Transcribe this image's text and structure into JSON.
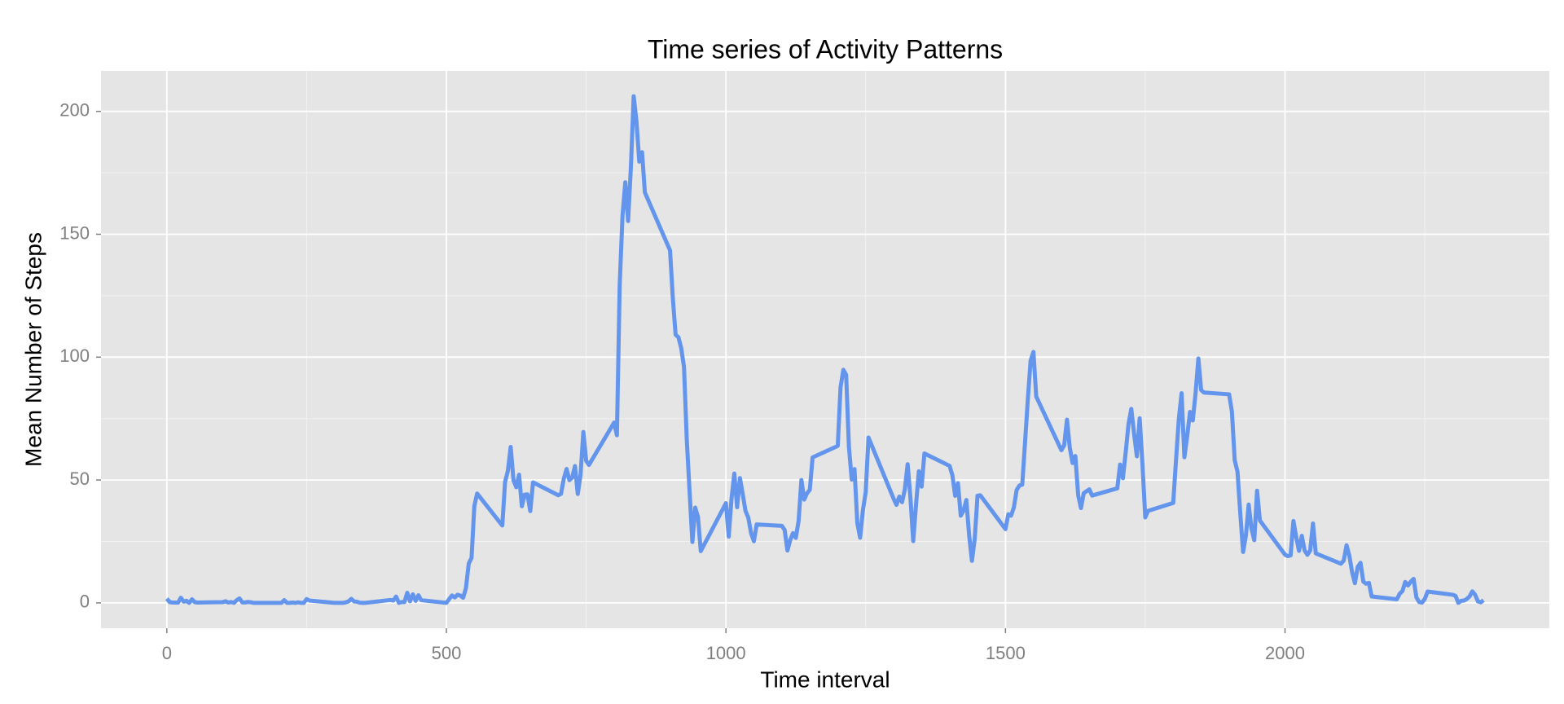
{
  "chart_data": {
    "type": "line",
    "title": "Time series of Activity Patterns",
    "x_label": "Time interval",
    "y_label": "Mean Number of Steps",
    "xlim": [
      -117.75,
      2472.75
    ],
    "ylim": [
      -10.31,
      216.48
    ],
    "xticks": [
      0,
      500,
      1000,
      1500,
      2000
    ],
    "yticks": [
      0,
      50,
      100,
      150,
      200
    ],
    "x_minor_ticks": [
      250,
      750,
      1250,
      1750,
      2250
    ],
    "y_minor_ticks": [
      25,
      75,
      125,
      175
    ],
    "grid": true,
    "x": [
      0,
      5,
      10,
      15,
      20,
      25,
      30,
      35,
      40,
      45,
      50,
      55,
      100,
      105,
      110,
      115,
      120,
      125,
      130,
      135,
      140,
      145,
      150,
      155,
      200,
      205,
      210,
      215,
      220,
      225,
      230,
      235,
      240,
      245,
      250,
      255,
      300,
      305,
      310,
      315,
      320,
      325,
      330,
      335,
      340,
      345,
      350,
      355,
      400,
      405,
      410,
      415,
      420,
      425,
      430,
      435,
      440,
      445,
      450,
      455,
      500,
      505,
      510,
      515,
      520,
      525,
      530,
      535,
      540,
      545,
      550,
      555,
      600,
      605,
      610,
      615,
      620,
      625,
      630,
      635,
      640,
      645,
      650,
      655,
      700,
      705,
      710,
      715,
      720,
      725,
      730,
      735,
      740,
      745,
      750,
      755,
      800,
      805,
      810,
      815,
      820,
      825,
      830,
      835,
      840,
      845,
      850,
      855,
      900,
      905,
      910,
      915,
      920,
      925,
      930,
      935,
      940,
      945,
      950,
      955,
      1000,
      1005,
      1010,
      1015,
      1020,
      1025,
      1030,
      1035,
      1040,
      1045,
      1050,
      1055,
      1100,
      1105,
      1110,
      1115,
      1120,
      1125,
      1130,
      1135,
      1140,
      1145,
      1150,
      1155,
      1200,
      1205,
      1210,
      1215,
      1220,
      1225,
      1230,
      1235,
      1240,
      1245,
      1250,
      1255,
      1300,
      1305,
      1310,
      1315,
      1320,
      1325,
      1330,
      1335,
      1340,
      1345,
      1350,
      1355,
      1400,
      1405,
      1410,
      1415,
      1420,
      1425,
      1430,
      1435,
      1440,
      1445,
      1450,
      1455,
      1500,
      1505,
      1510,
      1515,
      1520,
      1525,
      1530,
      1535,
      1540,
      1545,
      1550,
      1555,
      1600,
      1605,
      1610,
      1615,
      1620,
      1625,
      1630,
      1635,
      1640,
      1645,
      1650,
      1655,
      1700,
      1705,
      1710,
      1715,
      1720,
      1725,
      1730,
      1735,
      1740,
      1745,
      1750,
      1755,
      1800,
      1805,
      1810,
      1815,
      1820,
      1825,
      1830,
      1835,
      1840,
      1845,
      1850,
      1855,
      1900,
      1905,
      1910,
      1915,
      1920,
      1925,
      1930,
      1935,
      1940,
      1945,
      1950,
      1955,
      2000,
      2005,
      2010,
      2015,
      2020,
      2025,
      2030,
      2035,
      2040,
      2045,
      2050,
      2055,
      2100,
      2105,
      2110,
      2115,
      2120,
      2125,
      2130,
      2135,
      2140,
      2145,
      2150,
      2155,
      2200,
      2205,
      2210,
      2215,
      2220,
      2225,
      2230,
      2235,
      2240,
      2245,
      2250,
      2255,
      2300,
      2305,
      2310,
      2315,
      2320,
      2325,
      2330,
      2335,
      2340,
      2345,
      2350,
      2355
    ],
    "series": [
      {
        "color": "#6495ed",
        "values": [
          1.72,
          0.34,
          0.13,
          0.15,
          0.08,
          2.09,
          0.53,
          0.87,
          0,
          1.47,
          0.3,
          0.13,
          0.32,
          0.68,
          0.15,
          0.34,
          0,
          1.11,
          1.83,
          0.17,
          0.17,
          0.38,
          0.26,
          0,
          0,
          0,
          1.13,
          0,
          0,
          0.13,
          0,
          0.23,
          0,
          0,
          1.55,
          0.94,
          0,
          0,
          0,
          0,
          0.21,
          0.62,
          1.62,
          0.58,
          0.49,
          0.08,
          0,
          0,
          1.19,
          0.94,
          2.57,
          0,
          0.34,
          0.36,
          4.11,
          0.66,
          3.49,
          0.83,
          3.11,
          1.11,
          0,
          1.57,
          3,
          2.25,
          3.32,
          2.96,
          2.09,
          6.06,
          16.02,
          18.34,
          39.45,
          44.49,
          31.49,
          49.26,
          53.77,
          63.45,
          49.96,
          47.08,
          52.15,
          39.34,
          44.02,
          44.17,
          37.36,
          49.04,
          43.81,
          44.38,
          50.51,
          54.51,
          49.92,
          50.98,
          55.68,
          44.32,
          52.26,
          69.55,
          57.85,
          56.15,
          73.38,
          68.21,
          129.43,
          157.53,
          171.15,
          155.4,
          177.3,
          206.17,
          195.92,
          179.57,
          183.4,
          167.02,
          143.45,
          124.04,
          109.11,
          108.11,
          103.72,
          95.96,
          66.21,
          45.23,
          24.79,
          38.75,
          34.98,
          21.06,
          40.57,
          26.98,
          42.42,
          52.66,
          38.92,
          50.79,
          44.28,
          37.42,
          34.7,
          28.34,
          25.09,
          31.94,
          31.36,
          29.68,
          21.32,
          25.55,
          28.38,
          26.47,
          33.43,
          49.98,
          42.04,
          44.6,
          46.04,
          59.19,
          63.87,
          87.7,
          94.85,
          92.77,
          63.4,
          50.17,
          54.47,
          32.42,
          26.53,
          37.74,
          45.06,
          67.28,
          42.34,
          39.89,
          43.26,
          40.98,
          46.25,
          56.43,
          42.75,
          25.13,
          39.96,
          53.55,
          47.32,
          60.81,
          55.75,
          51.96,
          43.58,
          48.7,
          35.47,
          37.55,
          41.85,
          27.51,
          17.11,
          26.08,
          43.62,
          43.77,
          30.02,
          36.08,
          35.49,
          38.85,
          45.96,
          47.75,
          48.13,
          65.32,
          82.91,
          98.66,
          102.11,
          83.96,
          62.13,
          64.13,
          74.55,
          63.17,
          56.91,
          59.77,
          43.87,
          38.57,
          44.66,
          45.45,
          46.21,
          43.68,
          46.62,
          56.3,
          50.72,
          61.23,
          72.72,
          78.94,
          68.94,
          59.66,
          75.09,
          56.51,
          34.77,
          37.45,
          40.68,
          58.02,
          74.7,
          85.32,
          59.26,
          67.77,
          77.7,
          74.25,
          85.34,
          99.45,
          86.58,
          85.6,
          84.87,
          77.83,
          58.04,
          53.36,
          36.32,
          20.72,
          27.4,
          40.02,
          30.21,
          25.55,
          45.66,
          33.53,
          19.62,
          19.02,
          19.34,
          33.34,
          26.81,
          21.17,
          27.3,
          21.34,
          19.55,
          21.32,
          32.3,
          20.15,
          15.94,
          17.23,
          23.45,
          19.25,
          12.45,
          8.02,
          14.66,
          16.3,
          8.68,
          7.79,
          8.13,
          2.62,
          1.45,
          3.68,
          4.81,
          8.51,
          7.08,
          8.7,
          9.75,
          2.21,
          0.32,
          0.11,
          1.6,
          4.6,
          3.3,
          2.85,
          0,
          0.83,
          0.96,
          1.58,
          2.6,
          4.7,
          3.3,
          0.64,
          0.23,
          1.08
        ]
      }
    ]
  }
}
